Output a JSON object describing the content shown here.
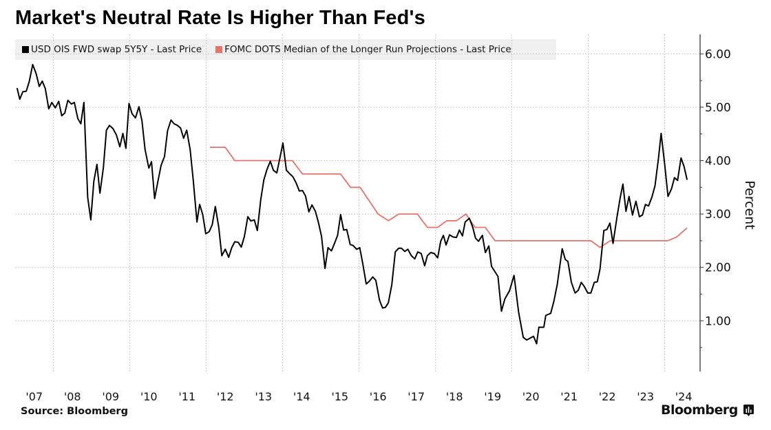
{
  "chart_data": {
    "type": "line",
    "title": "Market's Neutral Rate Is Higher Than Fed's",
    "ylabel": "Percent",
    "xlabel": "",
    "source": "Source: Bloomberg",
    "brand": "Bloomberg",
    "ylim": [
      0.05,
      6.3
    ],
    "xlim": [
      2007.0,
      2024.93
    ],
    "y_axis_side": "right",
    "grid": true,
    "legend_position": "top-left",
    "y_ticks": [
      1,
      2,
      3,
      4,
      5,
      6
    ],
    "y_tick_labels": [
      "1.00",
      "2.00",
      "3.00",
      "4.00",
      "5.00",
      "6.00"
    ],
    "x_tick_labels": [
      "'07",
      "'08",
      "'09",
      "'10",
      "'11",
      "'12",
      "'13",
      "'14",
      "'15",
      "'16",
      "'17",
      "'18",
      "'19",
      "'20",
      "'21",
      "'22",
      "'23",
      "'24"
    ],
    "series": [
      {
        "name": "USD OIS FWD swap 5Y5Y - Last Price",
        "color": "#000000",
        "x": [
          2007.05,
          2007.12,
          2007.2,
          2007.29,
          2007.37,
          2007.46,
          2007.55,
          2007.63,
          2007.71,
          2007.79,
          2007.88,
          2007.96,
          2008.05,
          2008.14,
          2008.22,
          2008.3,
          2008.38,
          2008.47,
          2008.55,
          2008.64,
          2008.72,
          2008.8,
          2008.9,
          2008.98,
          2009.06,
          2009.14,
          2009.22,
          2009.31,
          2009.39,
          2009.47,
          2009.56,
          2009.65,
          2009.74,
          2009.82,
          2009.9,
          2009.98,
          2010.06,
          2010.15,
          2010.24,
          2010.32,
          2010.4,
          2010.5,
          2010.57,
          2010.65,
          2010.74,
          2010.82,
          2010.91,
          2010.99,
          2011.08,
          2011.16,
          2011.25,
          2011.33,
          2011.41,
          2011.49,
          2011.58,
          2011.66,
          2011.76,
          2011.83,
          2011.91,
          2011.99,
          2012.08,
          2012.16,
          2012.24,
          2012.33,
          2012.41,
          2012.5,
          2012.59,
          2012.67,
          2012.75,
          2012.84,
          2012.92,
          2013.0,
          2013.09,
          2013.17,
          2013.26,
          2013.34,
          2013.43,
          2013.51,
          2013.59,
          2013.68,
          2013.76,
          2013.85,
          2013.93,
          2014.01,
          2014.1,
          2014.18,
          2014.27,
          2014.35,
          2014.44,
          2014.52,
          2014.6,
          2014.69,
          2014.77,
          2014.86,
          2014.94,
          2015.02,
          2015.11,
          2015.19,
          2015.28,
          2015.36,
          2015.44,
          2015.52,
          2015.6,
          2015.68,
          2015.77,
          2015.85,
          2015.94,
          2016.02,
          2016.1,
          2016.19,
          2016.27,
          2016.36,
          2016.44,
          2016.54,
          2016.62,
          2016.69,
          2016.77,
          2016.86,
          2016.95,
          2017.04,
          2017.11,
          2017.2,
          2017.28,
          2017.37,
          2017.46,
          2017.54,
          2017.63,
          2017.72,
          2017.79,
          2017.88,
          2017.97,
          2018.06,
          2018.14,
          2018.21,
          2018.28,
          2018.37,
          2018.46,
          2018.55,
          2018.63,
          2018.71,
          2018.78,
          2018.89,
          2018.98,
          2019.05,
          2019.13,
          2019.23,
          2019.31,
          2019.4,
          2019.47,
          2019.64,
          2019.73,
          2019.82,
          2019.94,
          2020.06,
          2020.18,
          2020.3,
          2020.39,
          2020.57,
          2020.65,
          2020.71,
          2020.84,
          2020.89,
          2021.02,
          2021.1,
          2021.19,
          2021.32,
          2021.4,
          2021.47,
          2021.56,
          2021.66,
          2021.74,
          2021.82,
          2021.9,
          2021.99,
          2022.07,
          2022.16,
          2022.24,
          2022.31,
          2022.41,
          2022.49,
          2022.57,
          2022.65,
          2022.76,
          2022.84,
          2022.91,
          2022.99,
          2023.07,
          2023.16,
          2023.25,
          2023.34,
          2023.42,
          2023.5,
          2023.58,
          2023.67,
          2023.75,
          2023.84,
          2023.91,
          2024.0,
          2024.09,
          2024.18,
          2024.26,
          2024.34,
          2024.43,
          2024.51,
          2024.59
        ],
        "y": [
          5.36,
          5.15,
          5.29,
          5.3,
          5.48,
          5.8,
          5.63,
          5.39,
          5.49,
          5.35,
          4.97,
          5.09,
          4.99,
          5.11,
          4.84,
          4.89,
          5.13,
          5.06,
          5.09,
          4.79,
          4.69,
          5.09,
          3.31,
          2.89,
          3.61,
          3.93,
          3.39,
          3.87,
          4.57,
          4.66,
          4.6,
          4.48,
          4.26,
          4.51,
          4.23,
          5.07,
          4.88,
          4.8,
          5.01,
          4.75,
          4.21,
          3.86,
          3.98,
          3.29,
          3.62,
          3.91,
          4.08,
          4.56,
          4.76,
          4.69,
          4.66,
          4.61,
          4.42,
          4.57,
          4.21,
          3.65,
          2.85,
          3.18,
          2.99,
          2.63,
          2.67,
          2.8,
          3.14,
          2.75,
          2.22,
          2.34,
          2.19,
          2.37,
          2.48,
          2.47,
          2.38,
          2.58,
          2.95,
          2.87,
          2.89,
          2.69,
          3.27,
          3.64,
          3.83,
          3.99,
          3.82,
          3.77,
          4.05,
          4.33,
          3.82,
          3.76,
          3.7,
          3.59,
          3.43,
          3.44,
          3.34,
          3.04,
          3.17,
          3.05,
          2.84,
          2.58,
          1.98,
          2.37,
          2.31,
          2.45,
          2.6,
          2.99,
          2.7,
          2.71,
          2.43,
          2.41,
          2.34,
          2.37,
          2.07,
          1.69,
          1.74,
          1.82,
          1.76,
          1.38,
          1.24,
          1.25,
          1.34,
          1.68,
          2.29,
          2.36,
          2.36,
          2.3,
          2.34,
          2.22,
          2.16,
          2.29,
          2.26,
          2.03,
          2.22,
          2.28,
          2.26,
          2.18,
          2.49,
          2.6,
          2.42,
          2.61,
          2.57,
          2.56,
          2.7,
          2.59,
          2.85,
          2.92,
          2.75,
          2.55,
          2.49,
          2.6,
          2.28,
          2.4,
          2.02,
          1.83,
          1.18,
          1.41,
          1.56,
          1.85,
          1.16,
          0.69,
          0.64,
          0.71,
          0.57,
          0.88,
          0.88,
          1.1,
          1.14,
          1.36,
          1.68,
          2.35,
          2.15,
          2.11,
          1.72,
          1.52,
          1.57,
          1.72,
          1.64,
          1.52,
          1.52,
          1.72,
          1.73,
          1.97,
          2.69,
          2.71,
          2.83,
          2.45,
          2.97,
          3.31,
          3.56,
          3.05,
          3.33,
          2.98,
          3.24,
          2.95,
          2.98,
          3.18,
          3.15,
          3.32,
          3.53,
          4.04,
          4.51,
          3.95,
          3.33,
          3.47,
          3.68,
          3.63,
          4.05,
          3.89,
          3.64
        ]
      },
      {
        "name": "FOMC DOTS Median of the Longer Run Projections - Last Price",
        "color": "#e8716a",
        "x": [
          2012.1,
          2012.5,
          2012.75,
          2014.26,
          2014.52,
          2015.52,
          2015.78,
          2016.03,
          2016.5,
          2016.77,
          2017.04,
          2017.53,
          2017.79,
          2018.06,
          2018.3,
          2018.55,
          2018.8,
          2019.04,
          2019.31,
          2019.56,
          2022.07,
          2022.31,
          2022.58,
          2024.08,
          2024.32,
          2024.59
        ],
        "y": [
          4.25,
          4.25,
          4.0,
          4.0,
          3.75,
          3.75,
          3.5,
          3.5,
          3.0,
          2.875,
          3.0,
          3.0,
          2.75,
          2.75,
          2.875,
          2.875,
          3.0,
          2.75,
          2.75,
          2.5,
          2.5,
          2.375,
          2.5,
          2.5,
          2.57,
          2.74
        ]
      }
    ]
  }
}
